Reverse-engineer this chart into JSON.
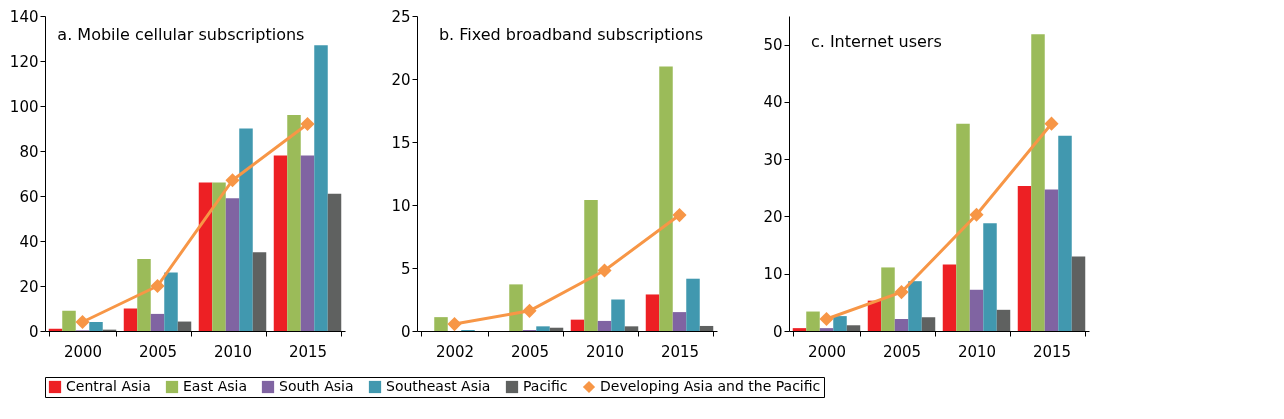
{
  "chart_data": [
    {
      "type": "bar",
      "title": "a. Mobile cellular subscriptions",
      "categories": [
        "2000",
        "2005",
        "2010",
        "2015"
      ],
      "ylim": [
        0,
        140
      ],
      "yticks": [
        0,
        20,
        40,
        60,
        80,
        100,
        120,
        140
      ],
      "legend": "bottom",
      "marker": "diamond",
      "series": [
        {
          "name": "Central Asia",
          "color": "#ed2024",
          "values": [
            1,
            10,
            66,
            78
          ]
        },
        {
          "name": "East Asia",
          "color": "#9bbb59",
          "values": [
            9,
            32,
            66,
            96
          ]
        },
        {
          "name": "South Asia",
          "color": "#8064a2",
          "values": [
            0.3,
            7.6,
            59,
            78
          ]
        },
        {
          "name": "Southeast Asia",
          "color": "#4198af",
          "values": [
            4,
            26,
            90,
            127
          ]
        },
        {
          "name": "Pacific",
          "color": "#5f6160",
          "values": [
            0.6,
            4.2,
            35,
            61
          ]
        },
        {
          "name": "Developing Asia and the Pacific",
          "color": "#f79646",
          "type": "line",
          "values": [
            4,
            20,
            67,
            92
          ]
        }
      ]
    },
    {
      "type": "bar",
      "title": "b. Fixed broadband subscriptions",
      "categories": [
        "2002",
        "2005",
        "2010",
        "2015"
      ],
      "ylim": [
        0,
        25
      ],
      "yticks": [
        0,
        5,
        10,
        15,
        20,
        25
      ],
      "legend": "bottom",
      "marker": "diamond",
      "series": [
        {
          "name": "Central Asia",
          "color": "#ed2024",
          "values": [
            0,
            0,
            0.9,
            2.9
          ]
        },
        {
          "name": "East Asia",
          "color": "#9bbb59",
          "values": [
            1.1,
            3.7,
            10.4,
            21
          ]
        },
        {
          "name": "South Asia",
          "color": "#8064a2",
          "values": [
            0,
            0.08,
            0.8,
            1.5
          ]
        },
        {
          "name": "Southeast Asia",
          "color": "#4198af",
          "values": [
            0.08,
            0.37,
            2.5,
            4.15
          ]
        },
        {
          "name": "Pacific",
          "color": "#5f6160",
          "values": [
            0,
            0.26,
            0.37,
            0.4
          ]
        },
        {
          "name": "Developing Asia and the Pacific",
          "color": "#f79646",
          "type": "line",
          "values": [
            0.55,
            1.6,
            4.8,
            9.2
          ]
        }
      ]
    },
    {
      "type": "bar",
      "title": "c. Internet users",
      "categories": [
        "2000",
        "2005",
        "2010",
        "2015"
      ],
      "ylim": [
        0,
        55
      ],
      "yticks": [
        0,
        10,
        20,
        30,
        40,
        50
      ],
      "legend": "bottom",
      "marker": "diamond",
      "series": [
        {
          "name": "Central Asia",
          "color": "#ed2024",
          "values": [
            0.5,
            5.3,
            11.6,
            25.3
          ]
        },
        {
          "name": "East Asia",
          "color": "#9bbb59",
          "values": [
            3.4,
            11.1,
            36.2,
            51.8
          ]
        },
        {
          "name": "South Asia",
          "color": "#8064a2",
          "values": [
            0.5,
            2.1,
            7.2,
            24.7
          ]
        },
        {
          "name": "Southeast Asia",
          "color": "#4198af",
          "values": [
            2.6,
            8.7,
            18.8,
            34.1
          ]
        },
        {
          "name": "Pacific",
          "color": "#5f6160",
          "values": [
            1,
            2.4,
            3.7,
            13
          ]
        },
        {
          "name": "Developing Asia and the Pacific",
          "color": "#f79646",
          "type": "line",
          "values": [
            2.1,
            6.8,
            20.3,
            36.2
          ]
        }
      ]
    }
  ]
}
